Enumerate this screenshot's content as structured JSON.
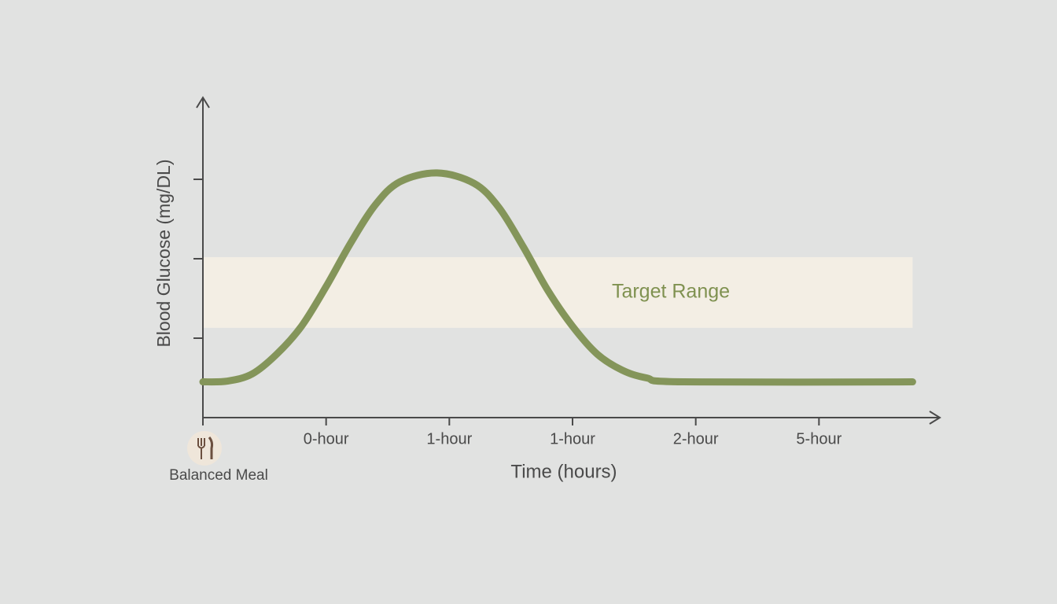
{
  "chart_data": {
    "type": "line",
    "y_label": "Blood Glucose (mg/DL)",
    "x_label": "Time (hours)",
    "annotation": "Balanced Meal",
    "categories": [
      null,
      "0-hour",
      "1-hour",
      "1-hour",
      "2-hour",
      "5-hour"
    ],
    "xlim": [
      0,
      6
    ],
    "ylim": [
      0,
      4
    ],
    "yticks": [
      1,
      2,
      3
    ],
    "target_range": {
      "label": "Target Range",
      "x": [
        0,
        5.76
      ],
      "y": [
        1.13,
        2.02
      ],
      "color": "#f3eee4"
    },
    "series": [
      {
        "color": "#84955a",
        "x": [
          0,
          0.2,
          0.4,
          0.6,
          0.8,
          1.0,
          1.2,
          1.4,
          1.6,
          1.9,
          2.2,
          2.4,
          2.6,
          2.8,
          3.0,
          3.2,
          3.4,
          3.6,
          3.9,
          5.76
        ],
        "values": [
          0.45,
          0.46,
          0.55,
          0.8,
          1.15,
          1.65,
          2.2,
          2.68,
          2.97,
          3.08,
          2.95,
          2.65,
          2.15,
          1.6,
          1.15,
          0.8,
          0.6,
          0.5,
          0.45,
          0.45
        ]
      }
    ]
  }
}
